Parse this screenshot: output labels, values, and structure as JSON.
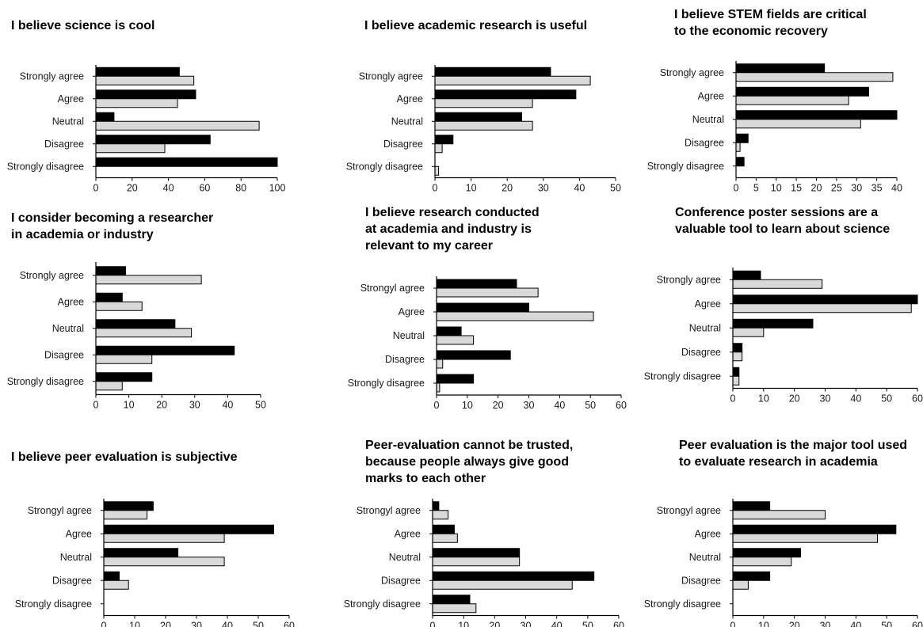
{
  "colors": {
    "series_dark": "#000000",
    "series_light": "#d9d9d9",
    "bar_stroke": "#000000"
  },
  "chart_data": [
    {
      "type": "bar",
      "orientation": "horizontal",
      "title": "I believe science is cool",
      "categories": [
        "Strongly agree",
        "Agree",
        "Neutral",
        "Disagree",
        "Strongly disagree"
      ],
      "series": [
        {
          "values": [
            46,
            55,
            10,
            63,
            100
          ]
        },
        {
          "values": [
            54,
            45,
            90,
            38,
            0
          ]
        }
      ],
      "xticks": [
        0,
        20,
        40,
        60,
        80,
        100
      ],
      "xlim": [
        0,
        100
      ],
      "grid": false,
      "legend": "none"
    },
    {
      "type": "bar",
      "orientation": "horizontal",
      "title": "I believe academic research is useful",
      "categories": [
        "Strongly agree",
        "Agree",
        "Neutral",
        "Disagree",
        "Strongly disagree"
      ],
      "series": [
        {
          "values": [
            32,
            39,
            24,
            5,
            0
          ]
        },
        {
          "values": [
            43,
            27,
            27,
            2,
            1
          ]
        }
      ],
      "xticks": [
        0,
        10,
        20,
        30,
        40,
        50
      ],
      "xlim": [
        0,
        50
      ],
      "grid": false,
      "legend": "none"
    },
    {
      "type": "bar",
      "orientation": "horizontal",
      "title": "I believe STEM fields are critical\nto the economic recovery",
      "categories": [
        "Strongly agree",
        "Agree",
        "Neutral",
        "Disagree",
        "Strongly disagree"
      ],
      "series": [
        {
          "values": [
            22,
            33,
            40,
            3,
            2
          ]
        },
        {
          "values": [
            39,
            28,
            31,
            1,
            0
          ]
        }
      ],
      "xticks": [
        0,
        5,
        10,
        15,
        20,
        25,
        30,
        35,
        40
      ],
      "xlim": [
        0,
        40
      ],
      "grid": false,
      "legend": "none"
    },
    {
      "type": "bar",
      "orientation": "horizontal",
      "title": "I consider becoming a researcher\nin academia or industry",
      "categories": [
        "Strongly agree",
        "Agree",
        "Neutral",
        "Disagree",
        "Strongly disagree"
      ],
      "series": [
        {
          "values": [
            9,
            8,
            24,
            42,
            17
          ]
        },
        {
          "values": [
            32,
            14,
            29,
            17,
            8
          ]
        }
      ],
      "xticks": [
        0,
        10,
        20,
        30,
        40,
        50
      ],
      "xlim": [
        0,
        50
      ],
      "grid": false,
      "legend": "none"
    },
    {
      "type": "bar",
      "orientation": "horizontal",
      "title": "I believe research conducted\nat academia and industry is\nrelevant to my career",
      "categories": [
        "Strongyl agree",
        "Agree",
        "Neutral",
        "Disagree",
        "Strongly disagree"
      ],
      "series": [
        {
          "values": [
            26,
            30,
            8,
            24,
            12
          ]
        },
        {
          "values": [
            33,
            51,
            12,
            2,
            1
          ]
        }
      ],
      "xticks": [
        0,
        10,
        20,
        30,
        40,
        50,
        60
      ],
      "xlim": [
        0,
        60
      ],
      "grid": false,
      "legend": "none"
    },
    {
      "type": "bar",
      "orientation": "horizontal",
      "title": "Conference poster sessions are a\nvaluable tool to learn about science",
      "categories": [
        "Strongly agree",
        "Agree",
        "Neutral",
        "Disagree",
        "Strongly disagree"
      ],
      "series": [
        {
          "values": [
            9,
            60,
            26,
            3,
            2
          ]
        },
        {
          "values": [
            29,
            58,
            10,
            3,
            2
          ]
        }
      ],
      "xticks": [
        0,
        10,
        20,
        30,
        40,
        50,
        60
      ],
      "xlim": [
        0,
        60
      ],
      "grid": false,
      "legend": "none"
    },
    {
      "type": "bar",
      "orientation": "horizontal",
      "title": "I believe peer evaluation is subjective",
      "categories": [
        "Strongyl agree",
        "Agree",
        "Neutral",
        "Disagree",
        "Strongly disagree"
      ],
      "series": [
        {
          "values": [
            16,
            55,
            24,
            5,
            0
          ]
        },
        {
          "values": [
            14,
            39,
            39,
            8,
            0
          ]
        }
      ],
      "xticks": [
        0,
        10,
        20,
        30,
        40,
        50,
        60
      ],
      "xlim": [
        0,
        60
      ],
      "grid": false,
      "legend": "none"
    },
    {
      "type": "bar",
      "orientation": "horizontal",
      "title": "Peer-evaluation cannot be trusted,\nbecause people always give good\nmarks to each other",
      "categories": [
        "Strongyl agree",
        "Agree",
        "Neutral",
        "Disagree",
        "Strongly disagree"
      ],
      "series": [
        {
          "values": [
            2,
            7,
            28,
            52,
            12
          ]
        },
        {
          "values": [
            5,
            8,
            28,
            45,
            14
          ]
        }
      ],
      "xticks": [
        0,
        10,
        20,
        30,
        40,
        50,
        60
      ],
      "xlim": [
        0,
        60
      ],
      "grid": false,
      "legend": "none"
    },
    {
      "type": "bar",
      "orientation": "horizontal",
      "title": "Peer evaluation is the major tool used\nto evaluate research in academia",
      "categories": [
        "Strongyl agree",
        "Agree",
        "Neutral",
        "Disagree",
        "Strongly disagree"
      ],
      "series": [
        {
          "values": [
            12,
            53,
            22,
            12,
            0
          ]
        },
        {
          "values": [
            30,
            47,
            19,
            5,
            0
          ]
        }
      ],
      "xticks": [
        0,
        10,
        20,
        30,
        40,
        50,
        60
      ],
      "xlim": [
        0,
        60
      ],
      "grid": false,
      "legend": "none"
    }
  ]
}
